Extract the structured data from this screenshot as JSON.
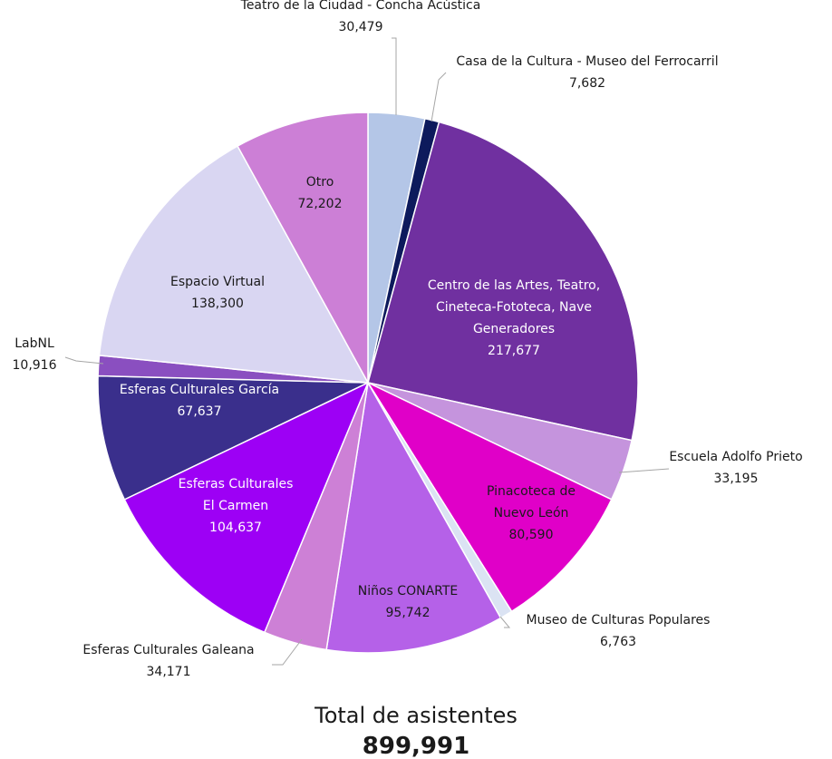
{
  "chart_data": {
    "type": "pie",
    "slices": [
      {
        "name": "Teatro de la Ciudad - Concha Acústica",
        "label_lines": [
          "Teatro de la Ciudad - Concha Acústica"
        ],
        "value": 30479,
        "value_label": "30,479",
        "color": "#b4c6e7",
        "label_placement": "outside"
      },
      {
        "name": "Casa de la Cultura - Museo del Ferrocarril",
        "label_lines": [
          "Casa de la Cultura - Museo del Ferrocarril"
        ],
        "value": 7682,
        "value_label": "7,682",
        "color": "#0d1a5c",
        "label_placement": "outside"
      },
      {
        "name": "Centro de las Artes, Teatro, Cineteca-Fototeca, Nave Generadores",
        "label_lines": [
          "Centro de las Artes, Teatro,",
          "Cineteca-Fototeca, Nave",
          "Generadores"
        ],
        "value": 217677,
        "value_label": "217,677",
        "color": "#7030a0",
        "label_placement": "inside",
        "label_color": "#ffffff"
      },
      {
        "name": "Escuela Adolfo Prieto",
        "label_lines": [
          "Escuela Adolfo Prieto"
        ],
        "value": 33195,
        "value_label": "33,195",
        "color": "#c594dd",
        "label_placement": "outside"
      },
      {
        "name": "Pinacoteca de Nuevo León",
        "label_lines": [
          "Pinacoteca de",
          "Nuevo León"
        ],
        "value": 80590,
        "value_label": "80,590",
        "color": "#e000c8",
        "label_placement": "inside",
        "label_color": "#1a1a1a"
      },
      {
        "name": "Museo de Culturas Populares",
        "label_lines": [
          "Museo de Culturas Populares"
        ],
        "value": 6763,
        "value_label": "6,763",
        "color": "#dbe3f3",
        "label_placement": "outside"
      },
      {
        "name": "Niños CONARTE",
        "label_lines": [
          "Niños CONARTE"
        ],
        "value": 95742,
        "value_label": "95,742",
        "color": "#b561e8",
        "label_placement": "inside",
        "label_color": "#1a1a1a"
      },
      {
        "name": "Esferas Culturales Galeana",
        "label_lines": [
          "Esferas Culturales Galeana"
        ],
        "value": 34171,
        "value_label": "34,171",
        "color": "#cd80d6",
        "label_placement": "outside"
      },
      {
        "name": "Esferas Culturales El Carmen",
        "label_lines": [
          "Esferas Culturales",
          "El Carmen"
        ],
        "value": 104637,
        "value_label": "104,637",
        "color": "#9d00f5",
        "label_placement": "inside",
        "label_color": "#ffffff"
      },
      {
        "name": "Esferas Culturales García",
        "label_lines": [
          "Esferas Culturales García"
        ],
        "value": 67637,
        "value_label": "67,637",
        "color": "#3a2f8c",
        "label_placement": "inside",
        "label_color": "#ffffff"
      },
      {
        "name": "LabNL",
        "label_lines": [
          "LabNL"
        ],
        "value": 10916,
        "value_label": "10,916",
        "color": "#8a4fc0",
        "label_placement": "outside"
      },
      {
        "name": "Espacio Virtual",
        "label_lines": [
          "Espacio Virtual"
        ],
        "value": 138300,
        "value_label": "138,300",
        "color": "#d9d6f2",
        "label_placement": "inside",
        "label_color": "#1a1a1a"
      },
      {
        "name": "Otro",
        "label_lines": [
          "Otro"
        ],
        "value": 72202,
        "value_label": "72,202",
        "color": "#cc7fd6",
        "label_placement": "inside",
        "label_color": "#1a1a1a"
      }
    ],
    "start_angle_deg": 0,
    "direction": "clockwise",
    "legend": "none"
  },
  "total": {
    "label": "Total de asistentes",
    "value": "899,991"
  }
}
